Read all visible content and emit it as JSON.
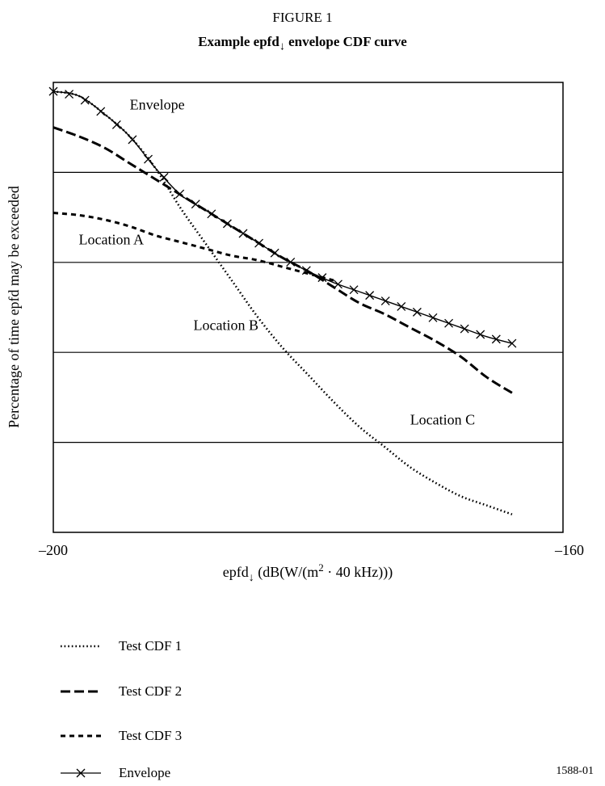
{
  "figure_number": "FIGURE 1",
  "chart_data": {
    "type": "line",
    "title_prefix": "Example epfd",
    "title_subscript": "↓",
    "title_suffix": " envelope CDF curve",
    "xlabel_prefix": "epfd",
    "xlabel_subscript": "↓",
    "xlabel_mid": " (dB(W/(m",
    "xlabel_superscript": "2",
    "xlabel_suffix": " · 40 kHz)))",
    "ylabel": "Percentage of time epfd may be exceeded",
    "xlim": [
      -200,
      -160
    ],
    "ylim": [
      0,
      100
    ],
    "x_tick_labels": [
      "–200",
      "–160"
    ],
    "y_gridlines": [
      20,
      40,
      60,
      80
    ],
    "grid": "horizontal",
    "series": [
      {
        "name": "Test CDF 1",
        "style": "dotted",
        "x": [
          -200,
          -198,
          -196,
          -194,
          -192,
          -190,
          -188,
          -186,
          -184,
          -182,
          -180,
          -178,
          -176,
          -174,
          -172,
          -170,
          -168,
          -166,
          -164
        ],
        "y": [
          98,
          97,
          93,
          88,
          81,
          72,
          64,
          56,
          48,
          41,
          35,
          29,
          23.5,
          19,
          14.5,
          11,
          8,
          6,
          4
        ]
      },
      {
        "name": "Test CDF 2",
        "style": "dashed",
        "x": [
          -200,
          -198,
          -196,
          -194,
          -192,
          -190,
          -188,
          -186,
          -184,
          -182,
          -180,
          -178,
          -176,
          -174,
          -172,
          -170,
          -168,
          -166,
          -164
        ],
        "y": [
          90,
          88,
          85.5,
          82,
          78.5,
          75,
          71.5,
          68,
          64.5,
          61,
          58,
          54.5,
          51,
          48.5,
          45.5,
          42.5,
          39,
          34.5,
          31
        ]
      },
      {
        "name": "Test CDF 3",
        "style": "short-dashed",
        "x": [
          -200,
          -198,
          -196,
          -194,
          -192,
          -190,
          -188,
          -186,
          -184,
          -182,
          -180,
          -178
        ],
        "y": [
          71,
          70.5,
          69.5,
          68,
          66,
          64.5,
          63,
          61.5,
          60.5,
          59,
          57.5,
          56
        ]
      },
      {
        "name": "Envelope",
        "style": "solid-x",
        "x": [
          -200,
          -198,
          -196,
          -194,
          -192,
          -190,
          -188,
          -186,
          -184,
          -182,
          -180,
          -178,
          -176,
          -174,
          -172,
          -170,
          -168,
          -166,
          -164
        ],
        "y": [
          98,
          97,
          93,
          88,
          81,
          75,
          71.5,
          68,
          64.5,
          61,
          58,
          55.5,
          53.5,
          51.5,
          49.5,
          47.5,
          45.5,
          43.5,
          42
        ]
      }
    ],
    "annotations": [
      {
        "text": "Envelope",
        "x": -194,
        "y": 94
      },
      {
        "text": "Location A",
        "x": -198,
        "y": 64
      },
      {
        "text": "Location B",
        "x": -189,
        "y": 45
      },
      {
        "text": "Location C",
        "x": -172,
        "y": 24
      }
    ],
    "legend_placement": "bottom-left"
  },
  "legend": [
    {
      "label": "Test CDF 1",
      "style": "dotted"
    },
    {
      "label": "Test CDF 2",
      "style": "dashed"
    },
    {
      "label": "Test CDF 3",
      "style": "short-dashed"
    },
    {
      "label": "Envelope",
      "style": "solid-x"
    }
  ],
  "figure_code": "1588-01"
}
